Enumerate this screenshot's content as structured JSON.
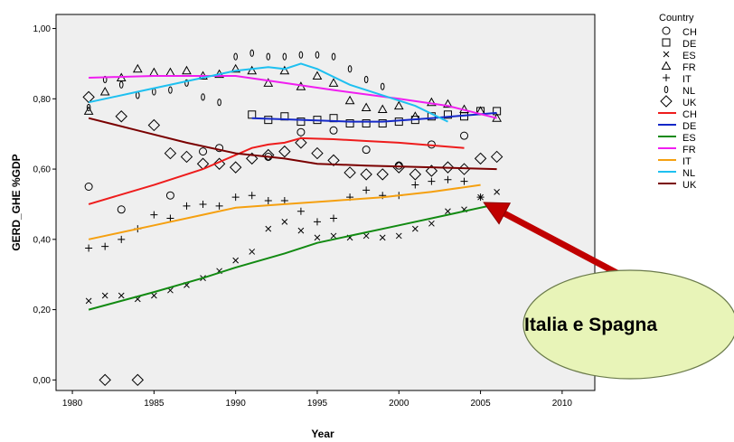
{
  "chart_data": {
    "type": "scatter",
    "title": "",
    "xlabel": "Year",
    "ylabel": "GERD_GHE %GDP",
    "xlim": [
      1979,
      2012
    ],
    "ylim": [
      -0.03,
      1.04
    ],
    "x_ticks": [
      1980,
      1985,
      1990,
      1995,
      2000,
      2005,
      2010
    ],
    "x_tick_labels": [
      "1980",
      "1985",
      "1990",
      "1995",
      "2000",
      "2005",
      "2010"
    ],
    "y_ticks": [
      0,
      0.2,
      0.4,
      0.6,
      0.8,
      1.0
    ],
    "y_tick_labels": [
      "0,00",
      "0,20",
      "0,40",
      "0,60",
      "0,80",
      "1,00"
    ],
    "grid": false,
    "plot_background": "#efefef",
    "legend": {
      "title": "Country",
      "placement": "right",
      "markers": [
        {
          "label": "CH",
          "marker": "circle"
        },
        {
          "label": "DE",
          "marker": "square"
        },
        {
          "label": "ES",
          "marker": "x"
        },
        {
          "label": "FR",
          "marker": "triangle"
        },
        {
          "label": "IT",
          "marker": "plus"
        },
        {
          "label": "NL",
          "marker": "zero"
        },
        {
          "label": "UK",
          "marker": "diamond"
        }
      ],
      "lines": [
        {
          "label": "CH",
          "color": "#ee1c1c"
        },
        {
          "label": "DE",
          "color": "#1428c8"
        },
        {
          "label": "ES",
          "color": "#128a12"
        },
        {
          "label": "FR",
          "color": "#f01ef0"
        },
        {
          "label": "IT",
          "color": "#f5a010"
        },
        {
          "label": "NL",
          "color": "#1ec0f0"
        },
        {
          "label": "UK",
          "color": "#7a0000"
        }
      ]
    },
    "series": [
      {
        "name": "CH",
        "marker": "circle",
        "points": [
          [
            1981,
            0.55
          ],
          [
            1983,
            0.485
          ],
          [
            1986,
            0.525
          ],
          [
            1988,
            0.65
          ],
          [
            1989,
            0.66
          ],
          [
            1992,
            0.635
          ],
          [
            1994,
            0.705
          ],
          [
            1996,
            0.71
          ],
          [
            1998,
            0.655
          ],
          [
            2000,
            0.61
          ],
          [
            2002,
            0.67
          ],
          [
            2004,
            0.695
          ]
        ]
      },
      {
        "name": "DE",
        "marker": "square",
        "points": [
          [
            1991,
            0.755
          ],
          [
            1992,
            0.74
          ],
          [
            1993,
            0.75
          ],
          [
            1994,
            0.735
          ],
          [
            1995,
            0.74
          ],
          [
            1996,
            0.745
          ],
          [
            1997,
            0.73
          ],
          [
            1998,
            0.73
          ],
          [
            1999,
            0.73
          ],
          [
            2000,
            0.735
          ],
          [
            2001,
            0.74
          ],
          [
            2002,
            0.75
          ],
          [
            2003,
            0.755
          ],
          [
            2004,
            0.75
          ],
          [
            2005,
            0.765
          ],
          [
            2006,
            0.765
          ]
        ]
      },
      {
        "name": "ES",
        "marker": "x",
        "points": [
          [
            1981,
            0.225
          ],
          [
            1982,
            0.24
          ],
          [
            1983,
            0.24
          ],
          [
            1984,
            0.23
          ],
          [
            1985,
            0.24
          ],
          [
            1986,
            0.255
          ],
          [
            1987,
            0.27
          ],
          [
            1988,
            0.29
          ],
          [
            1989,
            0.31
          ],
          [
            1990,
            0.34
          ],
          [
            1991,
            0.365
          ],
          [
            1992,
            0.43
          ],
          [
            1993,
            0.45
          ],
          [
            1994,
            0.425
          ],
          [
            1995,
            0.405
          ],
          [
            1996,
            0.41
          ],
          [
            1997,
            0.405
          ],
          [
            1998,
            0.41
          ],
          [
            1999,
            0.405
          ],
          [
            2000,
            0.41
          ],
          [
            2001,
            0.43
          ],
          [
            2002,
            0.445
          ],
          [
            2003,
            0.48
          ],
          [
            2004,
            0.485
          ],
          [
            2005,
            0.52
          ],
          [
            2006,
            0.535
          ]
        ]
      },
      {
        "name": "FR",
        "marker": "triangle",
        "points": [
          [
            1981,
            0.765
          ],
          [
            1982,
            0.82
          ],
          [
            1983,
            0.86
          ],
          [
            1984,
            0.885
          ],
          [
            1985,
            0.875
          ],
          [
            1986,
            0.875
          ],
          [
            1987,
            0.88
          ],
          [
            1988,
            0.865
          ],
          [
            1989,
            0.87
          ],
          [
            1990,
            0.885
          ],
          [
            1991,
            0.88
          ],
          [
            1992,
            0.845
          ],
          [
            1993,
            0.88
          ],
          [
            1994,
            0.835
          ],
          [
            1995,
            0.865
          ],
          [
            1996,
            0.845
          ],
          [
            1997,
            0.795
          ],
          [
            1998,
            0.775
          ],
          [
            1999,
            0.77
          ],
          [
            2000,
            0.78
          ],
          [
            2001,
            0.75
          ],
          [
            2002,
            0.79
          ],
          [
            2003,
            0.785
          ],
          [
            2004,
            0.77
          ],
          [
            2005,
            0.765
          ],
          [
            2006,
            0.745
          ]
        ]
      },
      {
        "name": "IT",
        "marker": "plus",
        "points": [
          [
            1981,
            0.375
          ],
          [
            1982,
            0.38
          ],
          [
            1983,
            0.4
          ],
          [
            1984,
            0.43
          ],
          [
            1985,
            0.47
          ],
          [
            1986,
            0.46
          ],
          [
            1987,
            0.495
          ],
          [
            1988,
            0.5
          ],
          [
            1989,
            0.495
          ],
          [
            1990,
            0.52
          ],
          [
            1991,
            0.525
          ],
          [
            1992,
            0.51
          ],
          [
            1993,
            0.51
          ],
          [
            1994,
            0.48
          ],
          [
            1995,
            0.45
          ],
          [
            1996,
            0.46
          ],
          [
            1997,
            0.52
          ],
          [
            1998,
            0.54
          ],
          [
            1999,
            0.525
          ],
          [
            2000,
            0.525
          ],
          [
            2001,
            0.555
          ],
          [
            2002,
            0.565
          ],
          [
            2003,
            0.57
          ],
          [
            2004,
            0.565
          ],
          [
            2005,
            0.52
          ]
        ]
      },
      {
        "name": "NL",
        "marker": "zero",
        "points": [
          [
            1981,
            0.775
          ],
          [
            1982,
            0.855
          ],
          [
            1983,
            0.84
          ],
          [
            1984,
            0.81
          ],
          [
            1985,
            0.82
          ],
          [
            1986,
            0.825
          ],
          [
            1987,
            0.845
          ],
          [
            1988,
            0.805
          ],
          [
            1989,
            0.79
          ],
          [
            1990,
            0.92
          ],
          [
            1991,
            0.93
          ],
          [
            1992,
            0.92
          ],
          [
            1993,
            0.92
          ],
          [
            1994,
            0.925
          ],
          [
            1995,
            0.925
          ],
          [
            1996,
            0.92
          ],
          [
            1997,
            0.885
          ],
          [
            1998,
            0.855
          ],
          [
            1999,
            0.835
          ]
        ]
      },
      {
        "name": "UK",
        "marker": "diamond",
        "points": [
          [
            1981,
            0.805
          ],
          [
            1982,
            0.0
          ],
          [
            1983,
            0.75
          ],
          [
            1984,
            0.0
          ],
          [
            1985,
            0.725
          ],
          [
            1986,
            0.645
          ],
          [
            1987,
            0.635
          ],
          [
            1988,
            0.615
          ],
          [
            1989,
            0.615
          ],
          [
            1990,
            0.605
          ],
          [
            1991,
            0.63
          ],
          [
            1992,
            0.64
          ],
          [
            1993,
            0.65
          ],
          [
            1994,
            0.675
          ],
          [
            1995,
            0.645
          ],
          [
            1996,
            0.625
          ],
          [
            1997,
            0.59
          ],
          [
            1998,
            0.585
          ],
          [
            1999,
            0.585
          ],
          [
            2000,
            0.605
          ],
          [
            2001,
            0.585
          ],
          [
            2002,
            0.595
          ],
          [
            2003,
            0.605
          ],
          [
            2004,
            0.6
          ],
          [
            2005,
            0.63
          ],
          [
            2006,
            0.635
          ]
        ]
      }
    ],
    "fit_lines": [
      {
        "name": "CH",
        "color": "#ee1c1c",
        "points": [
          [
            1981,
            0.5
          ],
          [
            1985,
            0.555
          ],
          [
            1988,
            0.6
          ],
          [
            1990,
            0.64
          ],
          [
            1991,
            0.66
          ],
          [
            1992,
            0.67
          ],
          [
            1993,
            0.675
          ],
          [
            1994,
            0.688
          ],
          [
            1996,
            0.685
          ],
          [
            1998,
            0.68
          ],
          [
            2000,
            0.675
          ],
          [
            2004,
            0.66
          ]
        ]
      },
      {
        "name": "DE",
        "color": "#1428c8",
        "points": [
          [
            1991,
            0.745
          ],
          [
            1994,
            0.74
          ],
          [
            1997,
            0.735
          ],
          [
            1999,
            0.735
          ],
          [
            2002,
            0.745
          ],
          [
            2006,
            0.76
          ]
        ]
      },
      {
        "name": "ES",
        "color": "#128a12",
        "points": [
          [
            1981,
            0.2
          ],
          [
            1985,
            0.25
          ],
          [
            1988,
            0.29
          ],
          [
            1990,
            0.32
          ],
          [
            1993,
            0.36
          ],
          [
            1995,
            0.39
          ],
          [
            1997,
            0.41
          ],
          [
            2000,
            0.44
          ],
          [
            2003,
            0.47
          ],
          [
            2006,
            0.5
          ]
        ]
      },
      {
        "name": "FR",
        "color": "#f01ef0",
        "points": [
          [
            1981,
            0.86
          ],
          [
            1985,
            0.865
          ],
          [
            1988,
            0.865
          ],
          [
            1990,
            0.865
          ],
          [
            1993,
            0.845
          ],
          [
            1996,
            0.825
          ],
          [
            2000,
            0.8
          ],
          [
            2003,
            0.78
          ],
          [
            2006,
            0.745
          ]
        ]
      },
      {
        "name": "IT",
        "color": "#f5a010",
        "points": [
          [
            1981,
            0.4
          ],
          [
            1985,
            0.44
          ],
          [
            1988,
            0.47
          ],
          [
            1990,
            0.49
          ],
          [
            1993,
            0.5
          ],
          [
            1996,
            0.51
          ],
          [
            1999,
            0.52
          ],
          [
            2002,
            0.535
          ],
          [
            2005,
            0.555
          ]
        ]
      },
      {
        "name": "NL",
        "color": "#1ec0f0",
        "points": [
          [
            1981,
            0.79
          ],
          [
            1984,
            0.82
          ],
          [
            1987,
            0.85
          ],
          [
            1990,
            0.88
          ],
          [
            1992,
            0.89
          ],
          [
            1993,
            0.885
          ],
          [
            1994,
            0.9
          ],
          [
            1995,
            0.885
          ],
          [
            1997,
            0.84
          ],
          [
            1999,
            0.81
          ],
          [
            2001,
            0.78
          ],
          [
            2003,
            0.735
          ]
        ]
      },
      {
        "name": "UK",
        "color": "#7a0000",
        "points": [
          [
            1981,
            0.745
          ],
          [
            1984,
            0.71
          ],
          [
            1987,
            0.675
          ],
          [
            1990,
            0.645
          ],
          [
            1993,
            0.63
          ],
          [
            1995,
            0.615
          ],
          [
            1998,
            0.61
          ],
          [
            2002,
            0.605
          ],
          [
            2006,
            0.6
          ]
        ]
      }
    ],
    "annotations": [
      {
        "text": "Italia e Spagna",
        "arrow_to": [
          2005.2,
          0.505
        ],
        "fill": "#e8f4b8",
        "arrow_color": "#c00000"
      }
    ]
  }
}
